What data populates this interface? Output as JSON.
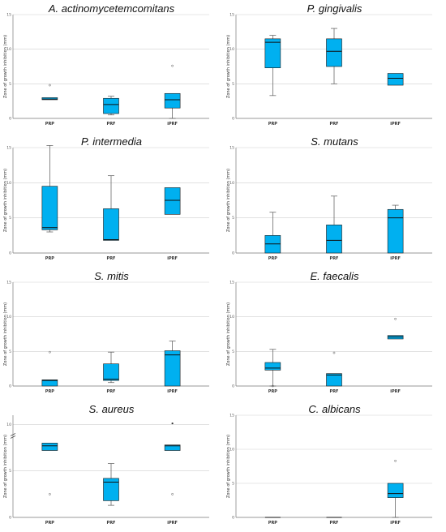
{
  "styles": {
    "box_fill": "#00b0f0",
    "box_stroke": "#1a1a1a",
    "grid": "#cfcfcf",
    "axis": "#777777"
  },
  "chart_data": [
    {
      "type": "boxplot",
      "title": "A. actinomycetemcomitans",
      "ylabel": "Zone of growth inhibition (mm)",
      "ylim": [
        0,
        15
      ],
      "yticks": [
        5,
        10,
        15
      ],
      "grid": true,
      "categories": [
        "PRP",
        "PRF",
        "iPRF"
      ],
      "boxes": [
        {
          "min": 2.7,
          "q1": 2.7,
          "median": 2.8,
          "q3": 3.0,
          "max": 3.0,
          "outliers": [
            4.8
          ]
        },
        {
          "min": 0.5,
          "q1": 0.7,
          "median": 2.0,
          "q3": 2.9,
          "max": 3.2,
          "outliers": []
        },
        {
          "min": 0.0,
          "q1": 1.5,
          "median": 2.7,
          "q3": 3.6,
          "max": 3.6,
          "outliers": [
            7.6
          ]
        }
      ]
    },
    {
      "type": "boxplot",
      "title": "P. gingivalis",
      "ylabel": "Zone of growth inhibition (mm)",
      "ylim": [
        0,
        15
      ],
      "yticks": [
        5,
        10,
        15
      ],
      "grid": true,
      "categories": [
        "PRP",
        "PRF",
        "iPRF"
      ],
      "boxes": [
        {
          "min": 3.3,
          "q1": 7.3,
          "median": 11.0,
          "q3": 11.5,
          "max": 12.0,
          "outliers": []
        },
        {
          "min": 5.0,
          "q1": 7.5,
          "median": 9.7,
          "q3": 11.5,
          "max": 13.0,
          "outliers": []
        },
        {
          "min": 4.8,
          "q1": 4.8,
          "median": 5.8,
          "q3": 6.5,
          "max": 6.5,
          "outliers": []
        }
      ]
    },
    {
      "type": "boxplot",
      "title": "P. intermedia",
      "ylabel": "Zone of growth inhibition (mm)",
      "ylim": [
        0,
        15
      ],
      "yticks": [
        5,
        10,
        15
      ],
      "grid": true,
      "categories": [
        "PRP",
        "PRF",
        "iPRF"
      ],
      "boxes": [
        {
          "min": 3.0,
          "q1": 3.3,
          "median": 3.6,
          "q3": 9.5,
          "max": 15.3,
          "outliers": []
        },
        {
          "min": 1.8,
          "q1": 1.8,
          "median": 1.9,
          "q3": 6.3,
          "max": 11.0,
          "outliers": []
        },
        {
          "min": 5.5,
          "q1": 5.5,
          "median": 7.5,
          "q3": 9.3,
          "max": 9.3,
          "outliers": []
        }
      ]
    },
    {
      "type": "boxplot",
      "title": "S. mutans",
      "ylabel": "Zone of growth inhibition (mm)",
      "ylim": [
        0,
        15
      ],
      "yticks": [
        5,
        10,
        15
      ],
      "grid": true,
      "categories": [
        "PRP",
        "PRF",
        "iPRF"
      ],
      "boxes": [
        {
          "min": 0.0,
          "q1": 0.0,
          "median": 1.3,
          "q3": 2.5,
          "max": 5.8,
          "outliers": []
        },
        {
          "min": 0.0,
          "q1": 0.0,
          "median": 1.8,
          "q3": 4.0,
          "max": 8.1,
          "outliers": []
        },
        {
          "min": 0.0,
          "q1": 0.0,
          "median": 5.0,
          "q3": 6.2,
          "max": 6.8,
          "outliers": []
        }
      ]
    },
    {
      "type": "boxplot",
      "title": "S. mitis",
      "ylabel": "Zone of growth inhibition (mm)",
      "ylim": [
        0,
        15
      ],
      "yticks": [
        5,
        10,
        15
      ],
      "grid": true,
      "categories": [
        "PRP",
        "PRF",
        "iPRF"
      ],
      "boxes": [
        {
          "min": 0.0,
          "q1": 0.0,
          "median": 0.8,
          "q3": 0.9,
          "max": 0.9,
          "outliers": [
            4.9
          ]
        },
        {
          "min": 0.5,
          "q1": 0.8,
          "median": 1.0,
          "q3": 3.2,
          "max": 4.9,
          "outliers": []
        },
        {
          "min": 0.0,
          "q1": 0.0,
          "median": 4.5,
          "q3": 5.1,
          "max": 6.5,
          "outliers": []
        }
      ]
    },
    {
      "type": "boxplot",
      "title": "E. faecalis",
      "ylabel": "Zone of growth inhibition (mm)",
      "ylim": [
        0,
        15
      ],
      "yticks": [
        5,
        10,
        15
      ],
      "grid": true,
      "categories": [
        "PRP",
        "PRF",
        "iPRF"
      ],
      "boxes": [
        {
          "min": 0.0,
          "q1": 2.3,
          "median": 2.6,
          "q3": 3.4,
          "max": 5.3,
          "outliers": [
            0.0
          ]
        },
        {
          "min": 0.0,
          "q1": 0.0,
          "median": 1.6,
          "q3": 1.8,
          "max": 1.8,
          "outliers": [
            4.8
          ]
        },
        {
          "min": 6.8,
          "q1": 6.8,
          "median": 7.1,
          "q3": 7.3,
          "max": 7.3,
          "outliers": [
            9.7
          ]
        }
      ]
    },
    {
      "type": "boxplot",
      "title": "S. aureus",
      "ylabel": "Zone of growth inhibition (mm)",
      "ylim": [
        0,
        11
      ],
      "yticks": [
        5,
        10
      ],
      "axis_break": true,
      "grid": true,
      "categories": [
        "PRP",
        "PRF",
        "iPRF"
      ],
      "boxes": [
        {
          "min": 7.2,
          "q1": 7.2,
          "median": 7.7,
          "q3": 8.0,
          "max": 8.0,
          "outliers": [
            2.5
          ]
        },
        {
          "min": 1.3,
          "q1": 1.8,
          "median": 3.8,
          "q3": 4.2,
          "max": 5.8,
          "outliers": []
        },
        {
          "min": 7.2,
          "q1": 7.2,
          "median": 7.7,
          "q3": 7.8,
          "max": 7.8,
          "outliers": [
            2.5
          ]
        }
      ],
      "extra_points": [
        {
          "category": "iPRF",
          "y_top_fraction": 0.08
        }
      ]
    },
    {
      "type": "boxplot",
      "title": "C. albicans",
      "ylabel": "Zone of growth inhibition (mm)",
      "ylim": [
        0,
        15
      ],
      "yticks": [
        5,
        10,
        15
      ],
      "grid": true,
      "categories": [
        "PRP",
        "PRF",
        "iPRF"
      ],
      "boxes": [
        {
          "min": 0.0,
          "q1": 0.0,
          "median": 0.0,
          "q3": 0.0,
          "max": 0.0,
          "outliers": []
        },
        {
          "min": 0.0,
          "q1": 0.0,
          "median": 0.0,
          "q3": 0.0,
          "max": 0.0,
          "outliers": []
        },
        {
          "min": 0.0,
          "q1": 2.9,
          "median": 3.5,
          "q3": 5.0,
          "max": 5.0,
          "outliers": [
            8.3
          ]
        }
      ]
    }
  ]
}
